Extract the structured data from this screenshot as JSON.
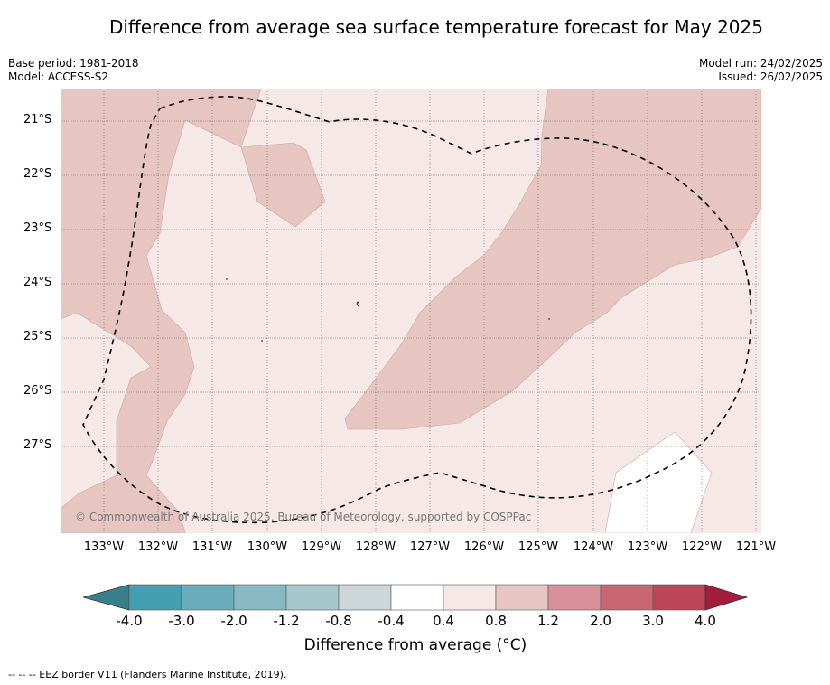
{
  "title": "Difference from average sea surface temperature forecast for May 2025",
  "base_period": "Base period: 1981-2018",
  "model": "Model: ACCESS-S2",
  "model_run": "Model run: 24/02/2025",
  "issued": "Issued: 26/02/2025",
  "copyright": "© Commonwealth of Australia 2025, Bureau of Meteorology, supported by COSPPac",
  "lat_labels": [
    "21°S",
    "22°S",
    "23°S",
    "24°S",
    "25°S",
    "26°S",
    "27°S"
  ],
  "lon_labels": [
    "133°W",
    "132°W",
    "131°W",
    "130°W",
    "129°W",
    "128°W",
    "127°W",
    "126°W",
    "125°W",
    "124°W",
    "123°W",
    "122°W",
    "121°W"
  ],
  "colorbar": {
    "ticks": [
      "-4.0",
      "-3.0",
      "-2.0",
      "-1.2",
      "-0.8",
      "-0.4",
      "0.4",
      "0.8",
      "1.2",
      "2.0",
      "3.0",
      "4.0"
    ],
    "colors": [
      "#449fb1",
      "#6badbc",
      "#88b8c4",
      "#a7c7cc",
      "#cdd7d9",
      "#ffffff",
      "#f5e8e7",
      "#e7c5c1",
      "#d8909a",
      "#c96771",
      "#bc4658"
    ],
    "under_color": "#387f8c",
    "over_color": "#a31c3c",
    "label": "Difference from average (°C)"
  },
  "legend_footer": "--  --  -- EEZ border V11 (Flanders Marine Institute, 2019).",
  "map_colors": {
    "background": "#f5e8e7",
    "warm_region": "#e7c5c1",
    "neutral_region": "#ffffff"
  }
}
